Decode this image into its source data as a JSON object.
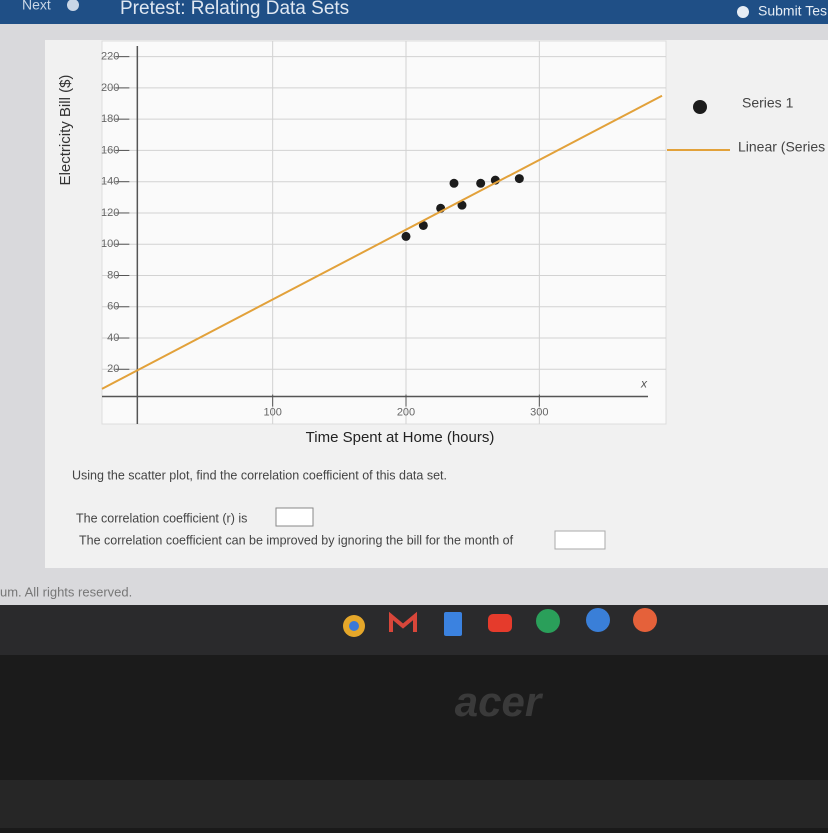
{
  "header": {
    "next": "Next",
    "title": "Pretest: Relating Data Sets",
    "submit": "Submit Tes"
  },
  "chart_data": {
    "type": "scatter",
    "xlabel": "Time Spent at Home (hours)",
    "ylabel": "Electricity Bill ($)",
    "x_axis_symbol": "x",
    "xlim": [
      -28,
      395
    ],
    "ylim": [
      -15,
      230
    ],
    "xticks": [
      100,
      200,
      300
    ],
    "yticks": [
      20,
      40,
      60,
      80,
      100,
      120,
      140,
      160,
      180,
      200,
      220
    ],
    "grid": true,
    "series": [
      {
        "name": "Series 1",
        "color": "#1c1c1c",
        "x": [
          200,
          213,
          226,
          236,
          242,
          256,
          267,
          285
        ],
        "values": [
          105,
          112,
          123,
          139,
          125,
          139,
          141,
          142
        ]
      },
      {
        "name": "Linear (Series",
        "color": "#e2a13a",
        "type": "line",
        "x": [
          -28,
          392
        ],
        "values": [
          7.5,
          195
        ]
      }
    ]
  },
  "question": {
    "prompt": "Using the scatter plot, find the correlation coefficient of this data set.",
    "line1": "The correlation coefficient (r) is",
    "line2": "The correlation coefficient can be improved by ignoring the bill for the month of"
  },
  "footer": "um. All rights reserved.",
  "brand": "acer"
}
